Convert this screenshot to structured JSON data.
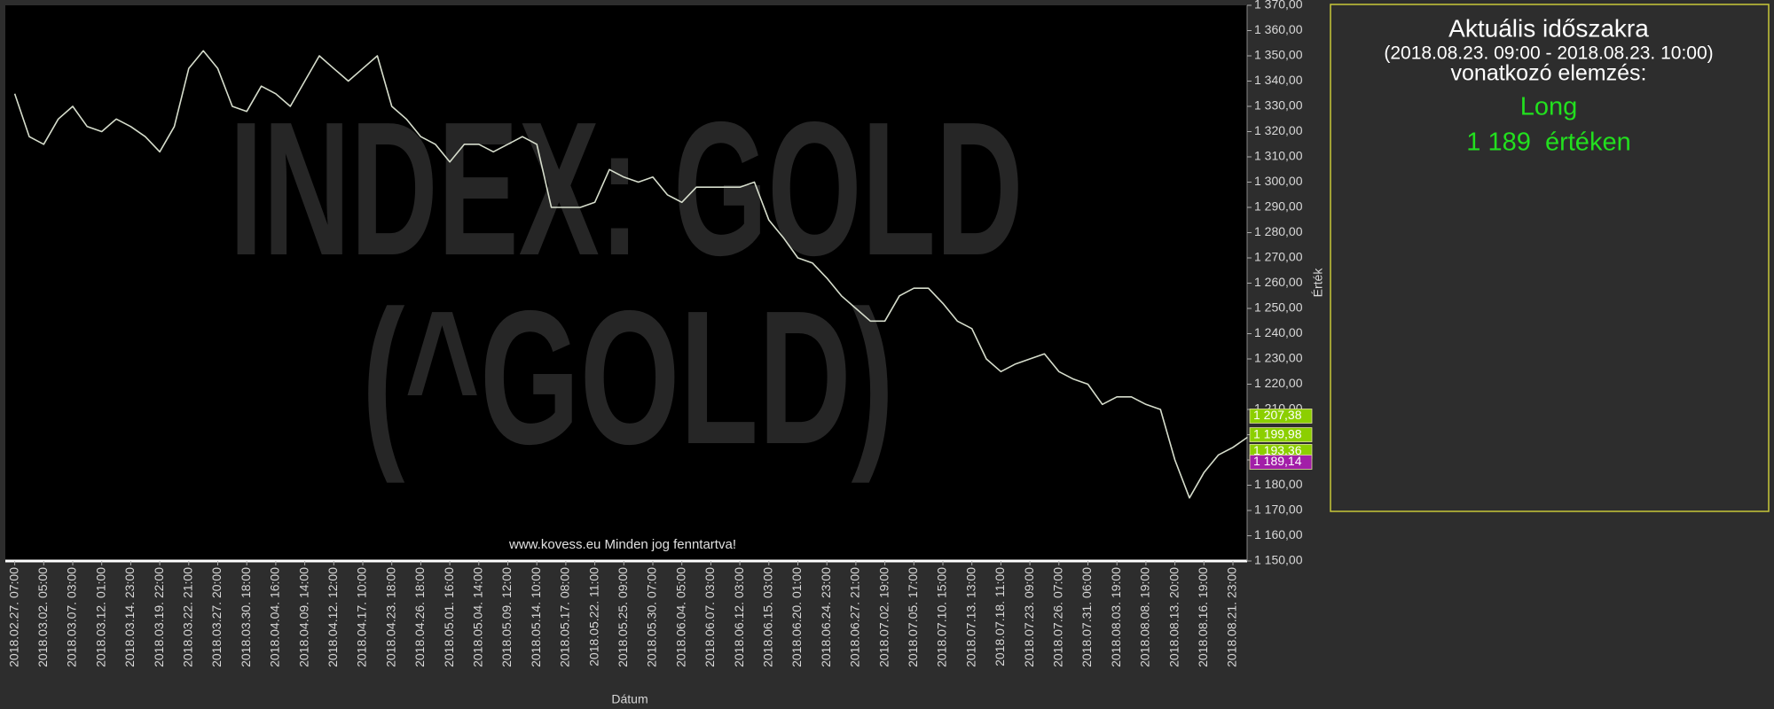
{
  "chart_data": {
    "type": "line",
    "watermark": [
      "INDEX: GOLD",
      "(^GOLD)"
    ],
    "copyright": "www.kovess.eu Minden jog fenntartva!",
    "xlabel": "Dátum",
    "ylabel": "Érték",
    "categories": [
      "2018.02.27. 07:00",
      null,
      "2018.03.02. 05:00",
      null,
      "2018.03.07. 03:00",
      null,
      "2018.03.12. 01:00",
      null,
      "2018.03.14. 23:00",
      null,
      "2018.03.19. 22:00",
      null,
      "2018.03.22. 21:00",
      null,
      "2018.03.27. 20:00",
      null,
      "2018.03.30. 18:00",
      null,
      "2018.04.04. 16:00",
      null,
      "2018.04.09. 14:00",
      null,
      "2018.04.12. 12:00",
      null,
      "2018.04.17. 10:00",
      null,
      "2018.04.23. 18:00",
      null,
      "2018.04.26. 18:00",
      null,
      "2018.05.01. 16:00",
      null,
      "2018.05.04. 14:00",
      null,
      "2018.05.09. 12:00",
      null,
      "2018.05.14. 10:00",
      null,
      "2018.05.17. 08:00",
      null,
      "2018.05.22. 11:00",
      null,
      "2018.05.25. 09:00",
      null,
      "2018.05.30. 07:00",
      null,
      "2018.06.04. 05:00",
      null,
      "2018.06.07. 03:00",
      null,
      "2018.06.12. 03:00",
      null,
      "2018.06.15. 03:00",
      null,
      "2018.06.20. 01:00",
      null,
      "2018.06.24. 23:00",
      null,
      "2018.06.27. 21:00",
      null,
      "2018.07.02. 19:00",
      null,
      "2018.07.05. 17:00",
      null,
      "2018.07.10. 15:00",
      null,
      "2018.07.13. 13:00",
      null,
      "2018.07.18. 11:00",
      null,
      "2018.07.23. 09:00",
      null,
      "2018.07.26. 07:00",
      null,
      "2018.07.31. 06:00",
      null,
      "2018.08.03. 19:00",
      null,
      "2018.08.08. 19:00",
      null,
      "2018.08.13. 20:00",
      null,
      "2018.08.16. 19:00",
      null,
      "2018.08.21. 23:00",
      null
    ],
    "values": [
      1335,
      1318,
      1315,
      1325,
      1330,
      1322,
      1320,
      1325,
      1322,
      1318,
      1312,
      1322,
      1345,
      1352,
      1345,
      1330,
      1328,
      1338,
      1335,
      1330,
      1340,
      1350,
      1345,
      1340,
      1345,
      1350,
      1330,
      1325,
      1318,
      1315,
      1308,
      1315,
      1315,
      1312,
      1315,
      1318,
      1315,
      1290,
      1290,
      1290,
      1292,
      1305,
      1302,
      1300,
      1302,
      1295,
      1292,
      1298,
      1298,
      1298,
      1298,
      1300,
      1285,
      1278,
      1270,
      1268,
      1262,
      1255,
      1250,
      1245,
      1245,
      1255,
      1258,
      1258,
      1252,
      1245,
      1242,
      1230,
      1225,
      1228,
      1230,
      1232,
      1225,
      1222,
      1220,
      1212,
      1215,
      1215,
      1212,
      1210,
      1190,
      1175,
      1185,
      1192,
      1195,
      1199
    ],
    "color": "#d6ddcc",
    "ylim": [
      1150,
      1370
    ],
    "yticks": [
      {
        "value": 1150,
        "label": "1 150,00"
      },
      {
        "value": 1160,
        "label": "1 160,00"
      },
      {
        "value": 1170,
        "label": "1 170,00"
      },
      {
        "value": 1180,
        "label": "1 180,00"
      },
      {
        "value": 1190,
        "label": "1 190,00"
      },
      {
        "value": 1200,
        "label": "1 200,00"
      },
      {
        "value": 1210,
        "label": "1 210,00"
      },
      {
        "value": 1220,
        "label": "1 220,00"
      },
      {
        "value": 1230,
        "label": "1 230,00"
      },
      {
        "value": 1240,
        "label": "1 240,00"
      },
      {
        "value": 1250,
        "label": "1 250,00"
      },
      {
        "value": 1260,
        "label": "1 260,00"
      },
      {
        "value": 1270,
        "label": "1 270,00"
      },
      {
        "value": 1280,
        "label": "1 280,00"
      },
      {
        "value": 1290,
        "label": "1 290,00"
      },
      {
        "value": 1300,
        "label": "1 300,00"
      },
      {
        "value": 1310,
        "label": "1 310,00"
      },
      {
        "value": 1320,
        "label": "1 320,00"
      },
      {
        "value": 1330,
        "label": "1 330,00"
      },
      {
        "value": 1340,
        "label": "1 340,00"
      },
      {
        "value": 1350,
        "label": "1 350,00"
      },
      {
        "value": 1360,
        "label": "1 360,00"
      },
      {
        "value": 1370,
        "label": "1 370,00"
      }
    ],
    "price_tags": [
      {
        "value": 1207.38,
        "label": "1 207,38",
        "color": "#8ccf00"
      },
      {
        "value": 1199.98,
        "label": "1 199,98",
        "color": "#8ccf00"
      },
      {
        "value": 1193.36,
        "label": "1 193,36",
        "color": "#8ccf00"
      },
      {
        "value": 1189.14,
        "label": "1 189,14",
        "color": "#a21ea8"
      }
    ],
    "panel": {
      "title": "Aktuális időszakra",
      "period": "(2018.08.23. 09:00 - 2018.08.23. 10:00)",
      "subtitle": "vonatkozó elemzés:",
      "signal": "Long",
      "level": "1 189  értéken"
    }
  }
}
